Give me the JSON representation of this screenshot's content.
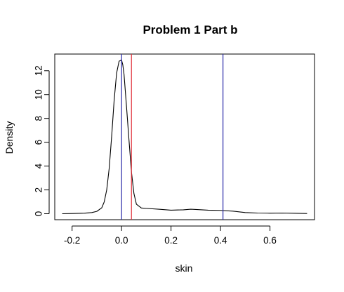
{
  "chart_data": {
    "type": "line",
    "title": "Problem 1 Part b",
    "xlabel": "skin",
    "ylabel": "Density",
    "xlim": [
      -0.27,
      0.78
    ],
    "ylim": [
      -0.5,
      13.4
    ],
    "x_ticks": [
      -0.2,
      0.0,
      0.2,
      0.4,
      0.6
    ],
    "x_tick_labels": [
      "-0.2",
      "0.0",
      "0.2",
      "0.4",
      "0.6"
    ],
    "y_ticks": [
      0,
      2,
      4,
      6,
      8,
      10,
      12
    ],
    "y_tick_labels": [
      "0",
      "2",
      "4",
      "6",
      "8",
      "10",
      "12"
    ],
    "grid": false,
    "legend": "none",
    "series": [
      {
        "color": "#000000",
        "x": [
          -0.24,
          -0.2,
          -0.15,
          -0.12,
          -0.1,
          -0.08,
          -0.07,
          -0.06,
          -0.05,
          -0.04,
          -0.03,
          -0.02,
          -0.01,
          0.0,
          0.005,
          0.01,
          0.02,
          0.03,
          0.04,
          0.05,
          0.06,
          0.08,
          0.1,
          0.15,
          0.2,
          0.25,
          0.28,
          0.3,
          0.35,
          0.4,
          0.45,
          0.5,
          0.55,
          0.6,
          0.65,
          0.7,
          0.75
        ],
        "y": [
          0.0,
          0.02,
          0.05,
          0.1,
          0.2,
          0.5,
          1.0,
          2.0,
          3.8,
          6.5,
          9.5,
          11.8,
          12.8,
          12.9,
          12.5,
          11.7,
          9.0,
          6.2,
          3.5,
          1.7,
          0.8,
          0.48,
          0.45,
          0.38,
          0.3,
          0.33,
          0.38,
          0.36,
          0.3,
          0.28,
          0.22,
          0.1,
          0.06,
          0.05,
          0.06,
          0.04,
          0.02
        ]
      }
    ],
    "vlines": [
      {
        "x": 0.0,
        "color": "#2a2aa8"
      },
      {
        "x": 0.04,
        "color": "#e0303a"
      },
      {
        "x": 0.41,
        "color": "#2a2aa8"
      }
    ]
  }
}
